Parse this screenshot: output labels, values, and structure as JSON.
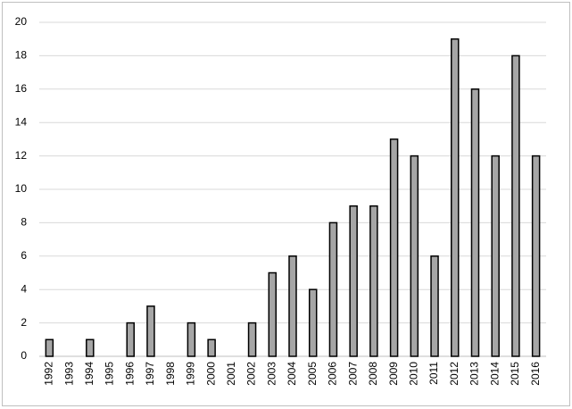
{
  "chart_data": {
    "type": "bar",
    "categories": [
      "1992",
      "1993",
      "1994",
      "1995",
      "1996",
      "1997",
      "1998",
      "1999",
      "2000",
      "2001",
      "2002",
      "2003",
      "2004",
      "2005",
      "2006",
      "2007",
      "2008",
      "2009",
      "2010",
      "2011",
      "2012",
      "2013",
      "2014",
      "2015",
      "2016"
    ],
    "values": [
      1,
      0,
      1,
      0,
      2,
      3,
      0,
      2,
      1,
      0,
      2,
      5,
      6,
      4,
      8,
      9,
      9,
      13,
      12,
      6,
      19,
      16,
      12,
      18,
      12
    ],
    "color": "#a6a6a6",
    "ylim": [
      0,
      20
    ],
    "yticks": [
      0,
      2,
      4,
      6,
      8,
      10,
      12,
      14,
      16,
      18,
      20
    ],
    "grid": true
  }
}
